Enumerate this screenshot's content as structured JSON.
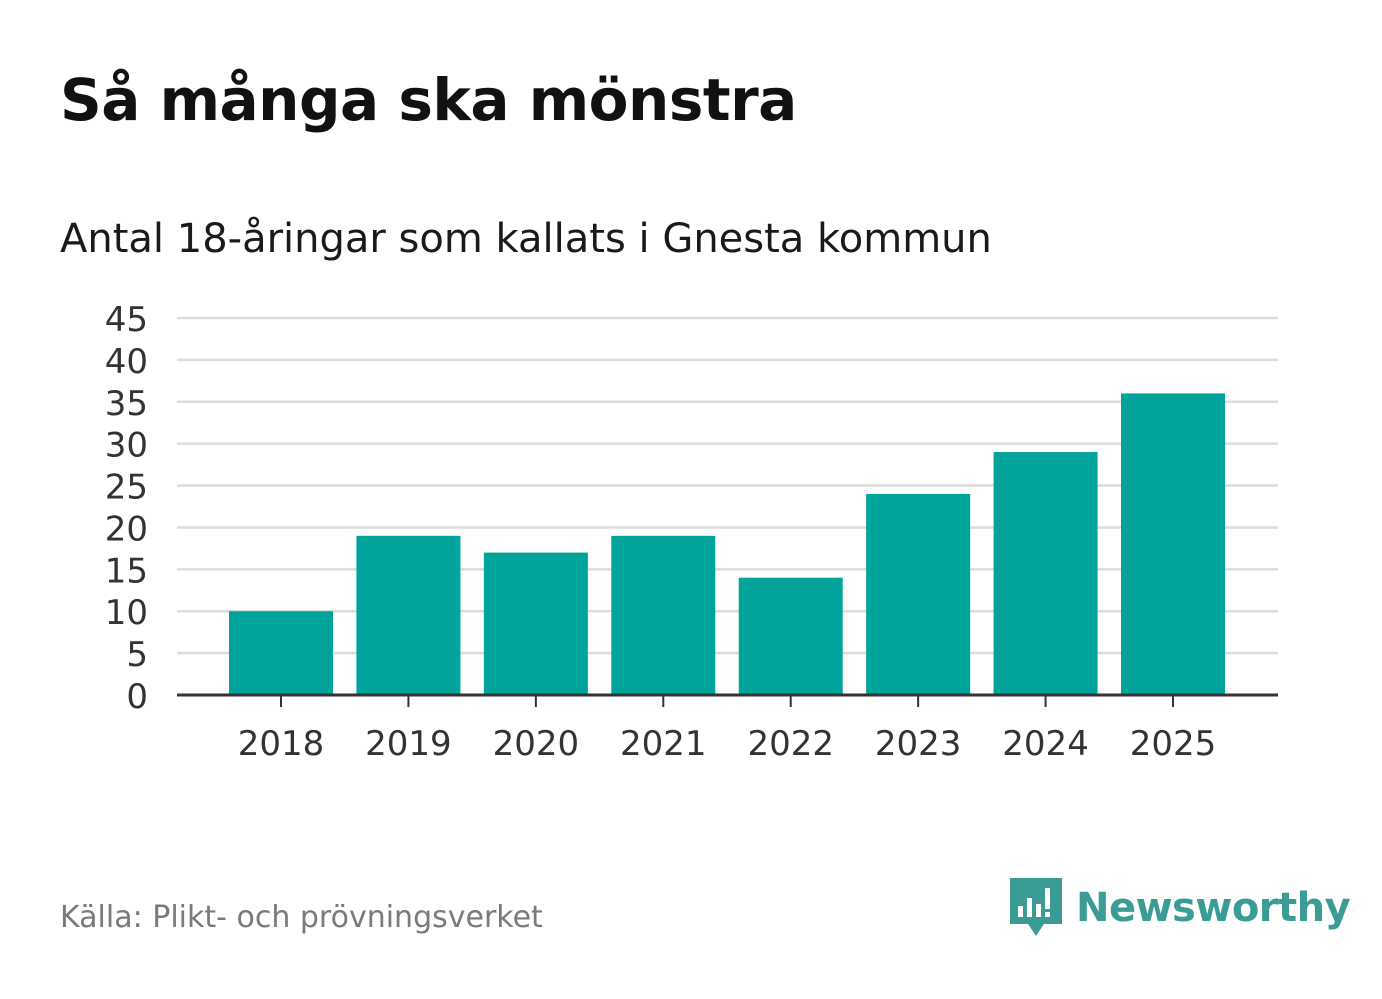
{
  "chart_data": {
    "type": "bar",
    "title": "Så många ska mönstra",
    "subtitle": "Antal 18-åringar som kallats i Gnesta kommun",
    "categories": [
      "2018",
      "2019",
      "2020",
      "2021",
      "2022",
      "2023",
      "2024",
      "2025"
    ],
    "values": [
      10,
      19,
      17,
      19,
      14,
      24,
      29,
      36
    ],
    "ylim": [
      0,
      45
    ],
    "yticks": [
      "0",
      "5",
      "10",
      "15",
      "20",
      "25",
      "30",
      "35",
      "40",
      "45"
    ],
    "xlabel": "",
    "ylabel": "",
    "grid": true,
    "bar_color": "#00a49a"
  },
  "source": "Källa: Plikt- och prövningsverket",
  "brand": {
    "name": "Newsworthy",
    "icon": "newsworthy-logo-icon",
    "color": "#3a9c95"
  }
}
